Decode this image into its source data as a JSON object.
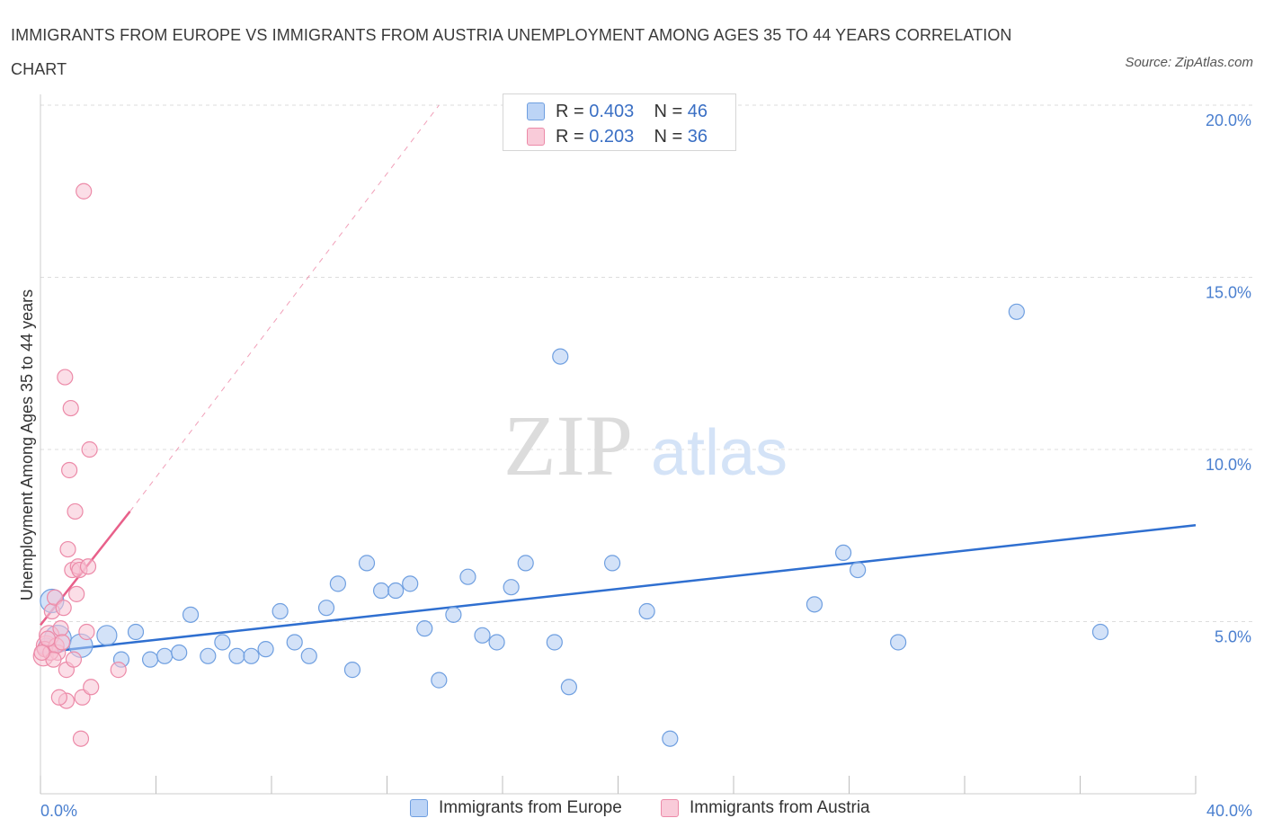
{
  "title": "IMMIGRANTS FROM EUROPE VS IMMIGRANTS FROM AUSTRIA UNEMPLOYMENT AMONG AGES 35 TO 44 YEARS CORRELATION CHART",
  "source": "Source: ZipAtlas.com",
  "watermark": {
    "zip": "ZIP",
    "atlas": "atlas"
  },
  "legend": {
    "europe": {
      "r_label": "R =",
      "r_value": "0.403",
      "n_label": "N =",
      "n_value": "46"
    },
    "austria": {
      "r_label": "R =",
      "r_value": "0.203",
      "n_label": "N =",
      "n_value": "36"
    }
  },
  "bottom_legend": {
    "europe": "Immigrants from Europe",
    "austria": "Immigrants from Austria"
  },
  "colors": {
    "europe_fill": "#aecbf3",
    "europe_stroke": "#6f9fe0",
    "europe_line": "#2f6fd0",
    "austria_fill": "#f8c3d3",
    "austria_stroke": "#ec8aa8",
    "austria_line": "#e8608a",
    "tick_text": "#4a7fcf",
    "grid": "#dddddd"
  },
  "chart_data": {
    "type": "scatter",
    "title": "IMMIGRANTS FROM EUROPE VS IMMIGRANTS FROM AUSTRIA UNEMPLOYMENT AMONG AGES 35 TO 44 YEARS CORRELATION CHART",
    "xlabel": "",
    "ylabel": "Unemployment Among Ages 35 to 44 years",
    "xlim": [
      0,
      40
    ],
    "ylim": [
      0,
      20
    ],
    "x_tick_labels": [
      "0.0%",
      "40.0%"
    ],
    "y_ticks": [
      5,
      10,
      15,
      20
    ],
    "y_tick_labels": [
      "5.0%",
      "10.0%",
      "15.0%",
      "20.0%"
    ],
    "grid": true,
    "series": [
      {
        "name": "Immigrants from Europe",
        "R": 0.403,
        "N": 46,
        "trend": {
          "x0": 0,
          "y0": 4.1,
          "x1": 40,
          "y1": 7.8
        },
        "points": [
          {
            "x": 0.4,
            "y": 5.6,
            "s": 3
          },
          {
            "x": 0.6,
            "y": 4.5,
            "s": 4
          },
          {
            "x": 1.4,
            "y": 4.3,
            "s": 3
          },
          {
            "x": 2.3,
            "y": 4.6,
            "s": 2
          },
          {
            "x": 2.8,
            "y": 3.9,
            "s": 1
          },
          {
            "x": 3.3,
            "y": 4.7,
            "s": 1
          },
          {
            "x": 3.8,
            "y": 3.9,
            "s": 1
          },
          {
            "x": 4.3,
            "y": 4.0,
            "s": 1
          },
          {
            "x": 4.8,
            "y": 4.1,
            "s": 1
          },
          {
            "x": 5.2,
            "y": 5.2,
            "s": 1
          },
          {
            "x": 5.8,
            "y": 4.0,
            "s": 1
          },
          {
            "x": 6.3,
            "y": 4.4,
            "s": 1
          },
          {
            "x": 6.8,
            "y": 4.0,
            "s": 1
          },
          {
            "x": 7.3,
            "y": 4.0,
            "s": 1
          },
          {
            "x": 7.8,
            "y": 4.2,
            "s": 1
          },
          {
            "x": 8.3,
            "y": 5.3,
            "s": 1
          },
          {
            "x": 8.8,
            "y": 4.4,
            "s": 1
          },
          {
            "x": 9.3,
            "y": 4.0,
            "s": 1
          },
          {
            "x": 9.9,
            "y": 5.4,
            "s": 1
          },
          {
            "x": 10.3,
            "y": 6.1,
            "s": 1
          },
          {
            "x": 10.8,
            "y": 3.6,
            "s": 1
          },
          {
            "x": 11.3,
            "y": 6.7,
            "s": 1
          },
          {
            "x": 11.8,
            "y": 5.9,
            "s": 1
          },
          {
            "x": 12.3,
            "y": 5.9,
            "s": 1
          },
          {
            "x": 12.8,
            "y": 6.1,
            "s": 1
          },
          {
            "x": 13.3,
            "y": 4.8,
            "s": 1
          },
          {
            "x": 13.8,
            "y": 3.3,
            "s": 1
          },
          {
            "x": 14.3,
            "y": 5.2,
            "s": 1
          },
          {
            "x": 14.8,
            "y": 6.3,
            "s": 1
          },
          {
            "x": 15.3,
            "y": 4.6,
            "s": 1
          },
          {
            "x": 15.8,
            "y": 4.4,
            "s": 1
          },
          {
            "x": 16.3,
            "y": 6.0,
            "s": 1
          },
          {
            "x": 16.8,
            "y": 6.7,
            "s": 1
          },
          {
            "x": 17.8,
            "y": 4.4,
            "s": 1
          },
          {
            "x": 18.0,
            "y": 12.7,
            "s": 1
          },
          {
            "x": 18.3,
            "y": 3.1,
            "s": 1
          },
          {
            "x": 19.8,
            "y": 6.7,
            "s": 1
          },
          {
            "x": 21.0,
            "y": 5.3,
            "s": 1
          },
          {
            "x": 21.8,
            "y": 1.6,
            "s": 1
          },
          {
            "x": 26.8,
            "y": 5.5,
            "s": 1
          },
          {
            "x": 27.8,
            "y": 7.0,
            "s": 1
          },
          {
            "x": 28.3,
            "y": 6.5,
            "s": 1
          },
          {
            "x": 29.7,
            "y": 4.4,
            "s": 1
          },
          {
            "x": 33.8,
            "y": 14.0,
            "s": 1
          },
          {
            "x": 36.7,
            "y": 4.7,
            "s": 1
          },
          {
            "x": 0.2,
            "y": 4.3,
            "s": 1
          }
        ]
      },
      {
        "name": "Immigrants from Austria",
        "R": 0.203,
        "N": 36,
        "trend": {
          "x0": 0,
          "y0": 4.9,
          "x1": 3.1,
          "y1": 8.2,
          "ext_x1": 13.8,
          "ext_y1": 20.0
        },
        "points": [
          {
            "x": 0.1,
            "y": 4.0,
            "s": 2
          },
          {
            "x": 0.2,
            "y": 4.3,
            "s": 2
          },
          {
            "x": 0.3,
            "y": 4.6,
            "s": 2
          },
          {
            "x": 0.4,
            "y": 5.3,
            "s": 1
          },
          {
            "x": 0.5,
            "y": 5.7,
            "s": 1
          },
          {
            "x": 0.6,
            "y": 4.1,
            "s": 1
          },
          {
            "x": 0.7,
            "y": 4.8,
            "s": 1
          },
          {
            "x": 0.8,
            "y": 5.4,
            "s": 1
          },
          {
            "x": 0.9,
            "y": 3.6,
            "s": 1
          },
          {
            "x": 0.9,
            "y": 2.7,
            "s": 1
          },
          {
            "x": 0.85,
            "y": 12.1,
            "s": 1
          },
          {
            "x": 0.95,
            "y": 7.1,
            "s": 1
          },
          {
            "x": 1.0,
            "y": 9.4,
            "s": 1
          },
          {
            "x": 1.05,
            "y": 11.2,
            "s": 1
          },
          {
            "x": 1.1,
            "y": 6.5,
            "s": 1
          },
          {
            "x": 1.15,
            "y": 3.9,
            "s": 1
          },
          {
            "x": 1.2,
            "y": 8.2,
            "s": 1
          },
          {
            "x": 1.25,
            "y": 5.8,
            "s": 1
          },
          {
            "x": 1.3,
            "y": 6.6,
            "s": 1
          },
          {
            "x": 1.35,
            "y": 6.5,
            "s": 1
          },
          {
            "x": 1.4,
            "y": 1.6,
            "s": 1
          },
          {
            "x": 1.45,
            "y": 2.8,
            "s": 1
          },
          {
            "x": 1.5,
            "y": 17.5,
            "s": 1
          },
          {
            "x": 1.6,
            "y": 4.7,
            "s": 1
          },
          {
            "x": 1.65,
            "y": 6.6,
            "s": 1
          },
          {
            "x": 1.7,
            "y": 10.0,
            "s": 1
          },
          {
            "x": 1.75,
            "y": 3.1,
            "s": 1
          },
          {
            "x": 2.7,
            "y": 3.6,
            "s": 1
          },
          {
            "x": 0.15,
            "y": 4.2,
            "s": 1
          },
          {
            "x": 0.35,
            "y": 4.1,
            "s": 1
          },
          {
            "x": 0.55,
            "y": 4.3,
            "s": 1
          },
          {
            "x": 0.45,
            "y": 3.9,
            "s": 1
          },
          {
            "x": 0.25,
            "y": 4.5,
            "s": 1
          },
          {
            "x": 0.65,
            "y": 2.8,
            "s": 1
          },
          {
            "x": 0.75,
            "y": 4.4,
            "s": 1
          },
          {
            "x": 0.05,
            "y": 4.1,
            "s": 1
          }
        ]
      }
    ]
  }
}
